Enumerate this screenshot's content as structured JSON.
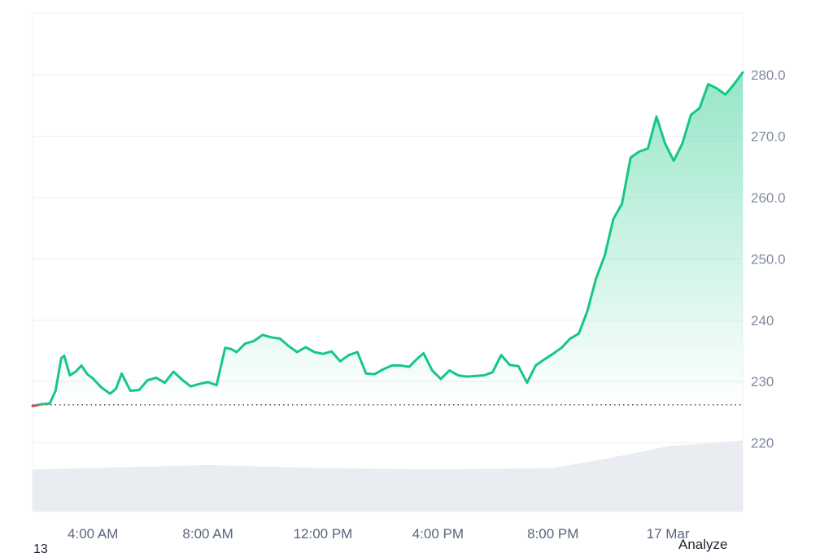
{
  "chart_data": {
    "type": "area",
    "y_ticks": [
      "280.0",
      "270.0",
      "260.0",
      "250.0",
      "240",
      "230",
      "220"
    ],
    "y_tick_values": [
      280,
      270,
      260,
      250,
      240,
      230,
      220
    ],
    "x_ticks": [
      "4:00 AM",
      "8:00 AM",
      "12:00 PM",
      "4:00 PM",
      "8:00 PM",
      "17 Mar"
    ],
    "x_tick_hours": [
      4,
      8,
      12,
      16,
      20,
      24
    ],
    "x_range_hours": [
      1.9,
      26.6
    ],
    "ylim": [
      208.8,
      290.1
    ],
    "baseline": 226.2,
    "colors": {
      "up": "#16c784",
      "down": "#ea3943",
      "volume": "#e9ecf0",
      "grid": "#eff2f5"
    },
    "series": [
      {
        "x": [
          1.9,
          2.2,
          2.5,
          2.7,
          2.9,
          3.0,
          3.2,
          3.4,
          3.6,
          3.8,
          4.0,
          4.3,
          4.6,
          4.8,
          5.0,
          5.3,
          5.6,
          5.9,
          6.2,
          6.5,
          6.8,
          7.1,
          7.4,
          7.7,
          8.0,
          8.3,
          8.6,
          8.8,
          9.0,
          9.3,
          9.6,
          9.9,
          10.2,
          10.5,
          10.8,
          11.1,
          11.4,
          11.7,
          12.0,
          12.3,
          12.6,
          12.9,
          13.2,
          13.5,
          13.8,
          14.1,
          14.4,
          14.7,
          15.0,
          15.3,
          15.5,
          15.8,
          16.1,
          16.4,
          16.7,
          17.0,
          17.3,
          17.6,
          17.9,
          18.2,
          18.5,
          18.8,
          19.1,
          19.4,
          19.7,
          20.0,
          20.3,
          20.6,
          20.9,
          21.2,
          21.5,
          21.8,
          22.1,
          22.4,
          22.7,
          23.0,
          23.3,
          23.6,
          23.9,
          24.2,
          24.5,
          24.8,
          25.1,
          25.4,
          25.7,
          26.0,
          26.3,
          26.6
        ],
        "y": [
          226.0,
          226.3,
          226.4,
          228.5,
          233.8,
          234.2,
          231.0,
          231.6,
          232.6,
          231.2,
          230.5,
          229.0,
          228.0,
          228.8,
          231.3,
          228.5,
          228.6,
          230.2,
          230.6,
          229.8,
          231.6,
          230.3,
          229.2,
          229.6,
          229.9,
          229.4,
          235.5,
          235.3,
          234.8,
          236.2,
          236.6,
          237.6,
          237.2,
          237.0,
          235.8,
          234.8,
          235.6,
          234.8,
          234.5,
          234.9,
          233.3,
          234.3,
          234.8,
          231.3,
          231.2,
          232.0,
          232.6,
          232.6,
          232.4,
          233.8,
          234.6,
          231.8,
          230.4,
          231.8,
          231.0,
          230.8,
          230.9,
          231.0,
          231.5,
          234.3,
          232.7,
          232.5,
          229.8,
          232.6,
          233.6,
          234.5,
          235.5,
          237.0,
          237.8,
          241.5,
          246.8,
          250.5,
          256.5,
          259.0,
          266.5,
          267.5,
          268.0,
          273.2,
          268.8,
          266.0,
          268.8,
          273.5,
          274.6,
          278.5,
          277.8,
          276.8,
          278.5,
          280.4
        ]
      }
    ],
    "volume": [
      {
        "x": 1.9,
        "v": 0.29
      },
      {
        "x": 4.0,
        "v": 0.3
      },
      {
        "x": 8.0,
        "v": 0.32
      },
      {
        "x": 12.0,
        "v": 0.3
      },
      {
        "x": 16.0,
        "v": 0.29
      },
      {
        "x": 20.0,
        "v": 0.3
      },
      {
        "x": 22.0,
        "v": 0.37
      },
      {
        "x": 24.0,
        "v": 0.45
      },
      {
        "x": 26.6,
        "v": 0.49
      }
    ]
  },
  "toolbar": {
    "analyze_label": "Analyze"
  },
  "footer": {
    "corner_label": "13"
  }
}
